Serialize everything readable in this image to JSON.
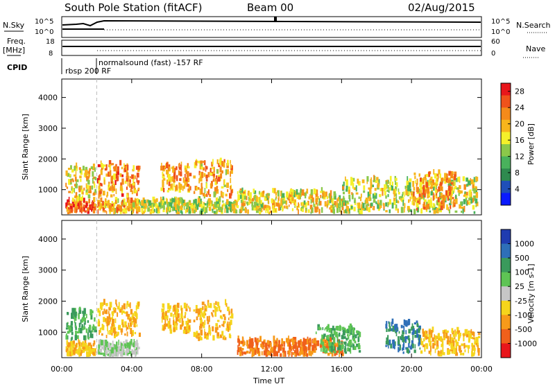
{
  "header": {
    "station": "South Pole Station (fitACF)",
    "beam": "Beam 00",
    "date": "02/Aug/2015"
  },
  "status_panels": {
    "nsky_label": "N.Sky",
    "nsearch_label": "N.Search",
    "freq_label_1": "Freq.",
    "freq_label_2": "[MHz]",
    "nave_label": "Nave",
    "cpid_label": "CPID",
    "nsky_ticks": [
      "10^5",
      "10^0"
    ],
    "nsearch_ticks": [
      "10^5",
      "10^0"
    ],
    "freq_ticks": [
      "18",
      "8"
    ],
    "nave_ticks": [
      "60",
      "0"
    ],
    "cpid_program_1": "rbsp 200 RF",
    "cpid_program_2": "normalsound (fast) -157 RF"
  },
  "chart_data": [
    {
      "type": "heatmap",
      "title": "",
      "xlabel": "Time UT",
      "ylabel": "Slant Range [km]",
      "ytick_labels": [
        "1000",
        "2000",
        "3000",
        "4000"
      ],
      "yticks": [
        1000,
        2000,
        3000,
        4000
      ],
      "ylim": [
        180,
        4600
      ],
      "xtick_labels": [
        "00:00",
        "04:00",
        "08:00",
        "12:00",
        "16:00",
        "20:00",
        "00:00"
      ],
      "xticks": [
        0,
        4,
        8,
        12,
        16,
        20,
        24
      ],
      "xlim": [
        0,
        24
      ],
      "colorbar": {
        "label": "Power [dB]",
        "tick_labels": [
          "4",
          "8",
          "12",
          "16",
          "20",
          "24",
          "28"
        ],
        "tick_values": [
          4,
          8,
          12,
          16,
          20,
          24,
          28
        ],
        "range": [
          0,
          30
        ],
        "colors": [
          "#0a1aff",
          "#1f4fb8",
          "#2e8a4f",
          "#49b25c",
          "#8bc84a",
          "#f5f02a",
          "#f7b51c",
          "#f58a1a",
          "#f0521b",
          "#e8161b"
        ]
      },
      "scatter_blocks": [
        {
          "time_start": 0.2,
          "time_end": 1.9,
          "range_low": 200,
          "range_high": 600,
          "value": 26
        },
        {
          "time_start": 0.2,
          "time_end": 1.9,
          "range_low": 600,
          "range_high": 1700,
          "value": 18
        },
        {
          "time_start": 2.0,
          "time_end": 4.4,
          "range_low": 200,
          "range_high": 600,
          "value": 20
        },
        {
          "time_start": 2.0,
          "time_end": 4.4,
          "range_low": 700,
          "range_high": 1800,
          "value": 22
        },
        {
          "time_start": 5.6,
          "time_end": 7.3,
          "range_low": 900,
          "range_high": 1800,
          "value": 21
        },
        {
          "time_start": 7.5,
          "time_end": 9.7,
          "range_low": 700,
          "range_high": 1900,
          "value": 20
        },
        {
          "time_start": 4.4,
          "time_end": 10.0,
          "range_low": 200,
          "range_high": 600,
          "value": 15
        },
        {
          "time_start": 10.0,
          "time_end": 16.0,
          "range_low": 200,
          "range_high": 900,
          "value": 17
        },
        {
          "time_start": 16.0,
          "time_end": 23.8,
          "range_low": 200,
          "range_high": 1300,
          "value": 16
        },
        {
          "time_start": 20.0,
          "time_end": 22.5,
          "range_low": 300,
          "range_high": 1500,
          "value": 21
        }
      ]
    },
    {
      "type": "heatmap",
      "title": "",
      "xlabel": "Time UT",
      "ylabel": "Slant Range [km]",
      "ytick_labels": [
        "1000",
        "2000",
        "3000",
        "4000"
      ],
      "yticks": [
        1000,
        2000,
        3000,
        4000
      ],
      "ylim": [
        180,
        4600
      ],
      "xtick_labels": [
        "00:00",
        "04:00",
        "08:00",
        "12:00",
        "16:00",
        "20:00",
        "00:00"
      ],
      "xticks": [
        0,
        4,
        8,
        12,
        16,
        20,
        24
      ],
      "xlim": [
        0,
        24
      ],
      "colorbar": {
        "label": "Velocity [m s-1]",
        "tick_labels": [
          "1000",
          "500",
          "100",
          "25",
          "-25",
          "-100",
          "-500",
          "-1000"
        ],
        "tick_values": [
          1000,
          500,
          100,
          25,
          -25,
          -100,
          -500,
          -1000
        ],
        "colors": [
          "#1f3cb0",
          "#2e6fb8",
          "#3a9a5c",
          "#5ec454",
          "#c6c6c6",
          "#f5d51c",
          "#f79a1a",
          "#f0601b",
          "#e8161b"
        ]
      },
      "scatter_blocks": [
        {
          "time_start": 0.2,
          "time_end": 1.9,
          "range_low": 200,
          "range_high": 600,
          "value": -100
        },
        {
          "time_start": 0.2,
          "time_end": 1.9,
          "range_low": 700,
          "range_high": 1700,
          "value": 100
        },
        {
          "time_start": 2.0,
          "time_end": 4.4,
          "range_low": 800,
          "range_high": 1900,
          "value": -100
        },
        {
          "time_start": 2.0,
          "time_end": 4.4,
          "range_low": 200,
          "range_high": 600,
          "value": 25
        },
        {
          "time_start": 5.6,
          "time_end": 7.3,
          "range_low": 900,
          "range_high": 1800,
          "value": -100
        },
        {
          "time_start": 7.5,
          "time_end": 9.7,
          "range_low": 700,
          "range_high": 1900,
          "value": -100
        },
        {
          "time_start": 10.0,
          "time_end": 16.0,
          "range_low": 200,
          "range_high": 700,
          "value": -500
        },
        {
          "time_start": 14.5,
          "time_end": 17.0,
          "range_low": 300,
          "range_high": 1100,
          "value": 100
        },
        {
          "time_start": 18.5,
          "time_end": 20.5,
          "range_low": 300,
          "range_high": 1300,
          "value": 500
        },
        {
          "time_start": 20.5,
          "time_end": 23.8,
          "range_low": 200,
          "range_high": 1000,
          "value": -100
        }
      ]
    }
  ]
}
